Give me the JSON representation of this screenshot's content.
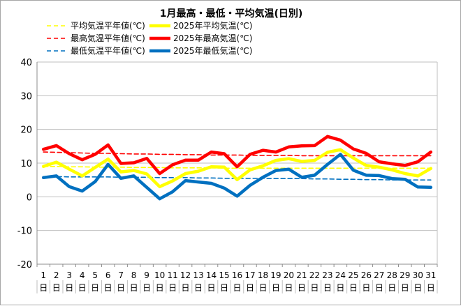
{
  "chart_data": {
    "type": "line",
    "title": "1月最高・最低・平均気温(日別)",
    "xlabel": "",
    "ylabel": "",
    "ylim": [
      -20,
      40
    ],
    "yticks": [
      -20,
      -10,
      0,
      10,
      20,
      30,
      40
    ],
    "grid": true,
    "legend_position": "top",
    "categories": [
      "1",
      "2",
      "3",
      "4",
      "5",
      "6",
      "7",
      "8",
      "9",
      "10",
      "11",
      "12",
      "13",
      "14",
      "15",
      "16",
      "17",
      "18",
      "19",
      "20",
      "21",
      "22",
      "23",
      "24",
      "25",
      "26",
      "27",
      "28",
      "29",
      "30",
      "31"
    ],
    "category_suffix": "日",
    "series": [
      {
        "name": "平均気温平年値(℃)",
        "style": "dashed",
        "color": "#ffff00",
        "values": [
          9.0,
          9.0,
          8.9,
          8.9,
          8.8,
          8.8,
          8.8,
          8.7,
          8.7,
          8.7,
          8.6,
          8.6,
          8.6,
          8.6,
          8.5,
          8.5,
          8.5,
          8.5,
          8.5,
          8.5,
          8.5,
          8.5,
          8.5,
          8.5,
          8.5,
          8.5,
          8.5,
          8.5,
          8.5,
          8.5,
          8.5
        ]
      },
      {
        "name": "最高気温平年値(℃)",
        "style": "dashed",
        "color": "#ff0000",
        "values": [
          13.3,
          13.2,
          13.1,
          13.0,
          12.9,
          12.9,
          12.8,
          12.7,
          12.7,
          12.6,
          12.6,
          12.5,
          12.5,
          12.4,
          12.4,
          12.4,
          12.3,
          12.3,
          12.3,
          12.3,
          12.2,
          12.2,
          12.2,
          12.2,
          12.2,
          12.2,
          12.2,
          12.2,
          12.2,
          12.2,
          12.2
        ]
      },
      {
        "name": "最低気温平年値(℃)",
        "style": "dashed",
        "color": "#0070c0",
        "values": [
          6.0,
          6.0,
          5.9,
          5.9,
          5.9,
          5.9,
          5.8,
          5.8,
          5.8,
          5.7,
          5.7,
          5.7,
          5.6,
          5.6,
          5.5,
          5.5,
          5.5,
          5.5,
          5.4,
          5.4,
          5.4,
          5.3,
          5.3,
          5.2,
          5.2,
          5.1,
          5.1,
          5.0,
          5.0,
          5.0,
          5.0
        ]
      },
      {
        "name": "2025年平均気温(℃)",
        "style": "solid",
        "color": "#ffff00",
        "values": [
          9.0,
          10.3,
          8.2,
          6.2,
          8.7,
          11.2,
          7.4,
          7.8,
          6.8,
          3.0,
          4.7,
          6.9,
          7.6,
          8.9,
          8.8,
          5.1,
          8.0,
          9.2,
          10.8,
          11.3,
          10.5,
          10.8,
          13.2,
          14.0,
          11.5,
          9.3,
          8.8,
          8.0,
          6.9,
          6.2,
          8.4
        ]
      },
      {
        "name": "2025年最高気温(℃)",
        "style": "solid",
        "color": "#ff0000",
        "values": [
          14.1,
          15.2,
          12.8,
          11.0,
          12.6,
          15.4,
          9.9,
          10.1,
          11.4,
          6.9,
          9.5,
          10.9,
          10.9,
          13.3,
          12.8,
          8.9,
          12.6,
          13.8,
          13.3,
          14.8,
          15.1,
          15.2,
          17.9,
          16.8,
          14.2,
          12.9,
          10.4,
          9.8,
          9.3,
          10.4,
          13.3
        ]
      },
      {
        "name": "2025年最低気温(℃)",
        "style": "solid",
        "color": "#0070c0",
        "values": [
          5.7,
          6.2,
          3.0,
          1.7,
          4.5,
          9.6,
          5.5,
          6.2,
          2.8,
          -0.6,
          1.5,
          4.8,
          4.4,
          4.0,
          2.6,
          0.2,
          3.4,
          5.8,
          7.8,
          8.2,
          5.8,
          6.4,
          9.6,
          12.6,
          7.9,
          6.4,
          6.3,
          5.4,
          5.2,
          2.9,
          2.8
        ]
      }
    ]
  }
}
